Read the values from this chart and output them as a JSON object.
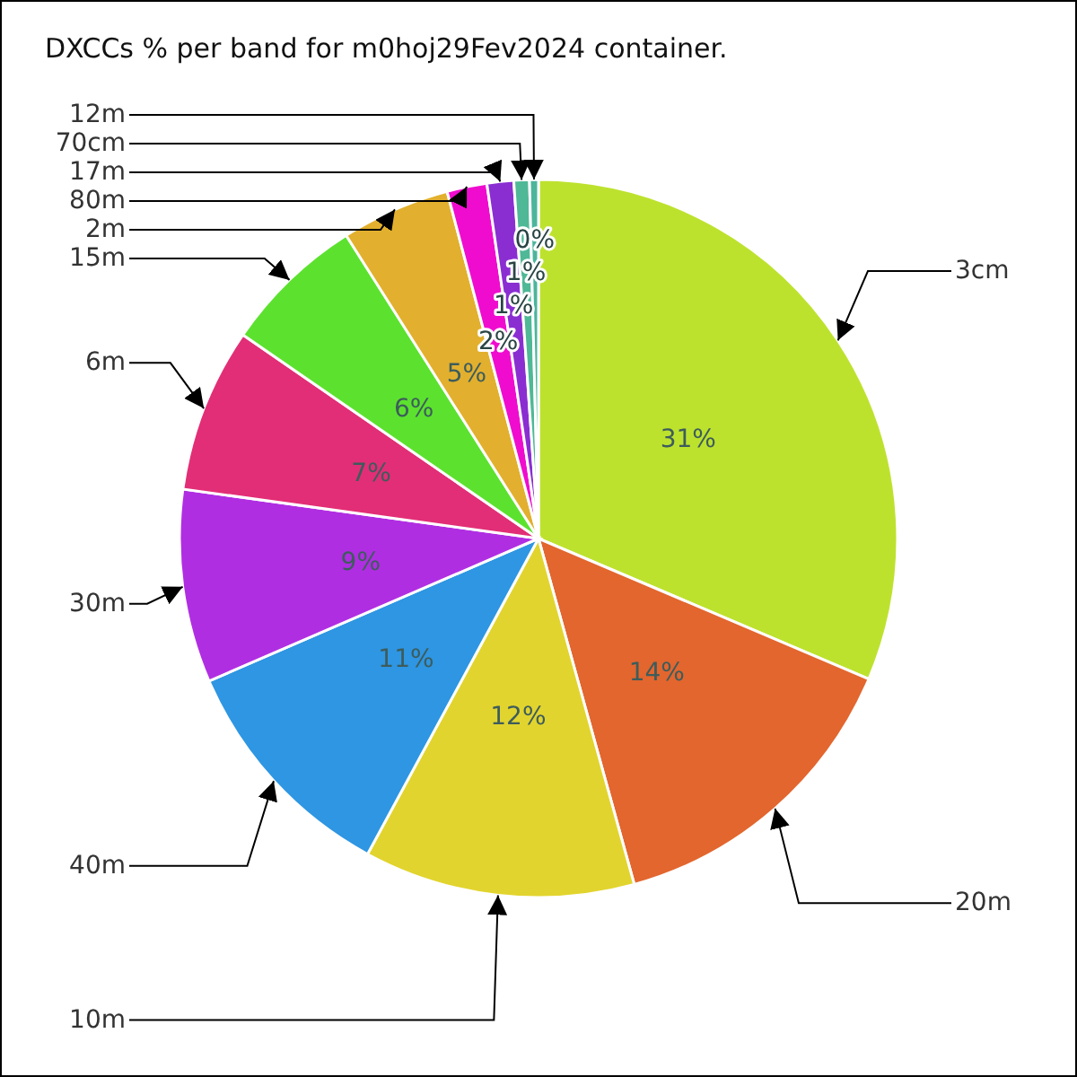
{
  "chart_data": {
    "type": "pie",
    "title": "DXCCs % per band for m0hoj29Fev2024 container.",
    "categories": [
      "3cm",
      "20m",
      "10m",
      "40m",
      "30m",
      "6m",
      "15m",
      "2m",
      "80m",
      "17m",
      "70cm",
      "12m"
    ],
    "values": [
      31.4,
      14.3,
      12.2,
      10.6,
      8.7,
      7.4,
      6.4,
      4.9,
      1.8,
      1.2,
      0.7,
      0.4
    ],
    "value_labels": [
      "31%",
      "14%",
      "12%",
      "11%",
      "9%",
      "7%",
      "6%",
      "5%",
      "2%",
      "1%",
      "1%",
      "0%"
    ],
    "colors": [
      "#bde22e",
      "#e2662e",
      "#e2d42e",
      "#2e96e2",
      "#b02ee2",
      "#e22e76",
      "#5ce22e",
      "#e2b02e",
      "#f00ccf",
      "#8a2ed2",
      "#4fb896",
      "#4cb59c"
    ]
  }
}
